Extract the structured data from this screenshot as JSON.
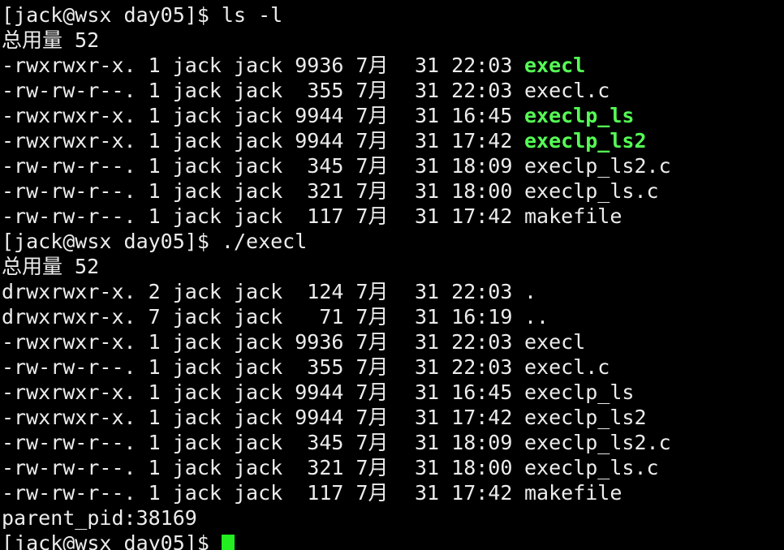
{
  "terminal": {
    "lines": [
      {
        "text": "[jack@wsx day05]$ ls -l"
      },
      {
        "text": "总用量 52"
      },
      {
        "entry": "-rwxrwxr-x. 1 jack jack 9936 7月",
        "time": "31 22:03",
        "file": "execl",
        "executable": true
      },
      {
        "entry": "-rw-rw-r--. 1 jack jack  355 7月",
        "time": "31 22:03",
        "file": "execl.c",
        "executable": false
      },
      {
        "entry": "-rwxrwxr-x. 1 jack jack 9944 7月",
        "time": "31 16:45",
        "file": "execlp_ls",
        "executable": true
      },
      {
        "entry": "-rwxrwxr-x. 1 jack jack 9944 7月",
        "time": "31 17:42",
        "file": "execlp_ls2",
        "executable": true
      },
      {
        "entry": "-rw-rw-r--. 1 jack jack  345 7月",
        "time": "31 18:09",
        "file": "execlp_ls2.c",
        "executable": false
      },
      {
        "entry": "-rw-rw-r--. 1 jack jack  321 7月",
        "time": "31 18:00",
        "file": "execlp_ls.c",
        "executable": false
      },
      {
        "entry": "-rw-rw-r--. 1 jack jack  117 7月",
        "time": "31 17:42",
        "file": "makefile",
        "executable": false
      },
      {
        "text": "[jack@wsx day05]$ ./execl"
      },
      {
        "text": "总用量 52"
      },
      {
        "entry": "drwxrwxr-x. 2 jack jack  124 7月",
        "time": "31 22:03",
        "file": ".",
        "executable": false
      },
      {
        "entry": "drwxrwxr-x. 7 jack jack   71 7月",
        "time": "31 16:19",
        "file": "..",
        "executable": false
      },
      {
        "entry": "-rwxrwxr-x. 1 jack jack 9936 7月",
        "time": "31 22:03",
        "file": "execl",
        "executable": false
      },
      {
        "entry": "-rw-rw-r--. 1 jack jack  355 7月",
        "time": "31 22:03",
        "file": "execl.c",
        "executable": false
      },
      {
        "entry": "-rwxrwxr-x. 1 jack jack 9944 7月",
        "time": "31 16:45",
        "file": "execlp_ls",
        "executable": false
      },
      {
        "entry": "-rwxrwxr-x. 1 jack jack 9944 7月",
        "time": "31 17:42",
        "file": "execlp_ls2",
        "executable": false
      },
      {
        "entry": "-rw-rw-r--. 1 jack jack  345 7月",
        "time": "31 18:09",
        "file": "execlp_ls2.c",
        "executable": false
      },
      {
        "entry": "-rw-rw-r--. 1 jack jack  321 7月",
        "time": "31 18:00",
        "file": "execlp_ls.c",
        "executable": false
      },
      {
        "entry": "-rw-rw-r--. 1 jack jack  117 7月",
        "time": "31 17:42",
        "file": "makefile",
        "executable": false
      },
      {
        "text": "parent_pid:38169"
      },
      {
        "text": "[jack@wsx day05]$ ",
        "cursor": true
      }
    ]
  }
}
